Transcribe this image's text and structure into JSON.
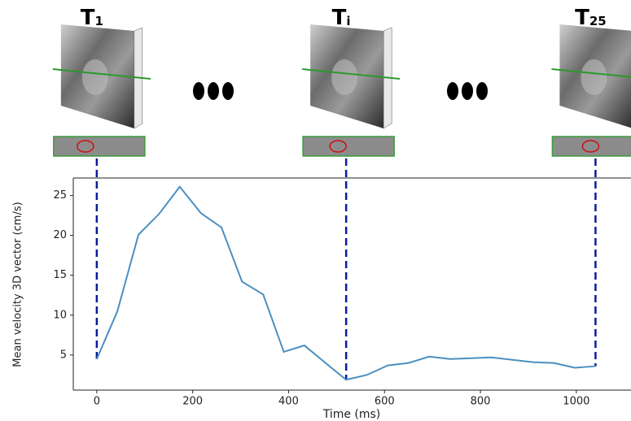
{
  "chart_data": {
    "type": "line",
    "x_label": "Time (ms)",
    "y_label": "Mean velocity 3D vector (cm/s)",
    "x": [
      0,
      43,
      87,
      130,
      173,
      217,
      260,
      303,
      347,
      390,
      433,
      477,
      520,
      563,
      607,
      650,
      693,
      737,
      780,
      823,
      867,
      910,
      953,
      997,
      1040
    ],
    "values": [
      4.5,
      10.5,
      20.1,
      22.7,
      26.1,
      22.8,
      21.0,
      14.2,
      12.6,
      5.4,
      6.2,
      4.0,
      1.9,
      2.5,
      3.7,
      4.0,
      4.8,
      4.5,
      4.6,
      4.7,
      4.4,
      4.1,
      4.0,
      3.4,
      3.6
    ],
    "color": "#4a8fc0",
    "xlim": [
      -49,
      1114
    ],
    "ylim": [
      0.6,
      27.2
    ],
    "xticks": [
      0,
      200,
      400,
      600,
      800,
      1000
    ],
    "yticks": [
      5,
      10,
      15,
      20,
      25
    ],
    "time_points": [
      {
        "base": "T",
        "sub": "1",
        "x": 0
      },
      {
        "base": "T",
        "sub": "i",
        "x": 520
      },
      {
        "base": "T",
        "sub": "25",
        "x": 1040
      }
    ],
    "marker_color": "#0a1a9c"
  }
}
